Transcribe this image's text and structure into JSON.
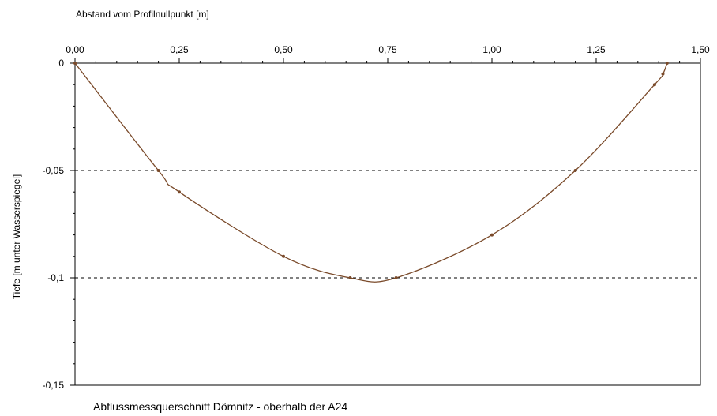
{
  "chart_data": {
    "type": "line",
    "title": "",
    "caption": "Abflussmessquerschnitt Dömnitz - oberhalb der A24",
    "xlabel": "Abstand vom Profilnullpunkt [m]",
    "ylabel": "Tiefe [m unter Wasserspiegel]",
    "xlim": [
      0,
      1.5
    ],
    "ylim": [
      -0.15,
      0
    ],
    "x_ticks": [
      {
        "value": 0,
        "label": "0,00"
      },
      {
        "value": 0.25,
        "label": "0,25"
      },
      {
        "value": 0.5,
        "label": "0,50"
      },
      {
        "value": 0.75,
        "label": "0,75"
      },
      {
        "value": 1.0,
        "label": "1,00"
      },
      {
        "value": 1.25,
        "label": "1,25"
      },
      {
        "value": 1.5,
        "label": "1,50"
      }
    ],
    "y_ticks": [
      {
        "value": 0,
        "label": "0"
      },
      {
        "value": -0.05,
        "label": "-0,05"
      },
      {
        "value": -0.1,
        "label": "-0,1"
      },
      {
        "value": -0.15,
        "label": "-0,15"
      }
    ],
    "gridlines_y": [
      -0.05,
      -0.1
    ],
    "grid_style": "dashed",
    "x_axis_position": "top",
    "line_color": "#7a4a2a",
    "series": [
      {
        "x": [
          0.0,
          0.2,
          0.25,
          0.5,
          0.66,
          0.77,
          1.0,
          1.2,
          1.39,
          1.41,
          1.42
        ],
        "y": [
          0.0,
          -0.05,
          -0.06,
          -0.09,
          -0.1,
          -0.1,
          -0.08,
          -0.05,
          -0.01,
          -0.005,
          0.0
        ]
      }
    ]
  }
}
